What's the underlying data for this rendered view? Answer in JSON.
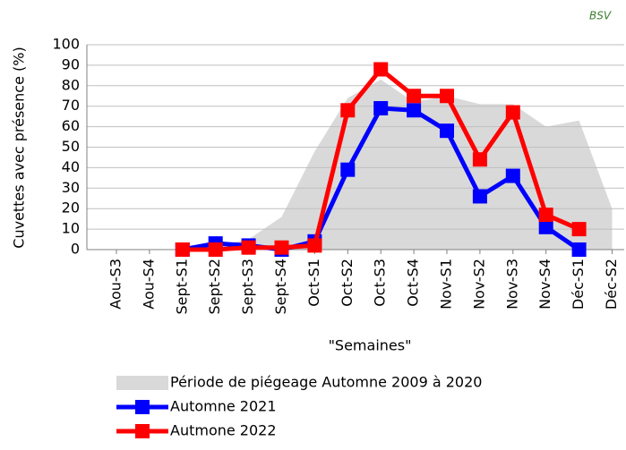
{
  "chart_data": {
    "type": "line",
    "logo": "BSV",
    "y_label": "Cuvettes avec présence (%)",
    "x_label": "\"Semaines\"",
    "categories": [
      "Aou-S3",
      "Aou-S4",
      "Sept-S1",
      "Sept-S2",
      "Sept-S3",
      "Sept-S4",
      "Oct-S1",
      "Oct-S2",
      "Oct-S3",
      "Oct-S4",
      "Nov-S1",
      "Nov-S2",
      "Nov-S3",
      "Nov-S4",
      "Déc-S1",
      "Déc-S2"
    ],
    "ylim": [
      0,
      100
    ],
    "yticks": [
      0,
      10,
      20,
      30,
      40,
      50,
      60,
      70,
      80,
      90,
      100
    ],
    "grid": true,
    "series": [
      {
        "name": "Période de piégeage Automne 2009 à 2020",
        "style": "area",
        "color": "#d9d9d9",
        "values": [
          0,
          0,
          0,
          2,
          5,
          16,
          48,
          74,
          83,
          72,
          75,
          71,
          71,
          60,
          63,
          20
        ]
      },
      {
        "name": "Automne 2021",
        "style": "line",
        "color": "#0000ff",
        "values": [
          null,
          null,
          0,
          3,
          2,
          0,
          4,
          39,
          69,
          68,
          58,
          26,
          36,
          11,
          0,
          null
        ]
      },
      {
        "name": "Autmone 2022",
        "style": "line",
        "color": "#ff0000",
        "values": [
          null,
          null,
          0,
          0,
          1,
          1,
          2,
          68,
          88,
          75,
          75,
          44,
          67,
          17,
          10,
          null
        ]
      }
    ]
  }
}
